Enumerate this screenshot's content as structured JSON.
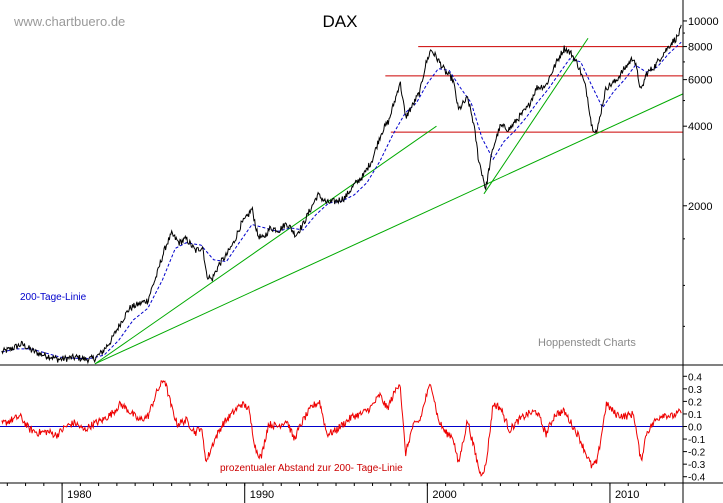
{
  "chart_data": [
    {
      "type": "line",
      "title": "DAX",
      "watermark": "www.chartbuero.de",
      "source": "Hoppenstedt Charts",
      "yscale": "log",
      "ylim": [
        500,
        11000
      ],
      "xlim": [
        1976.6,
        2014.0
      ],
      "yticks": [
        {
          "value": 10000,
          "label": "10000"
        },
        {
          "value": 8000,
          "label": "8000"
        },
        {
          "value": 6000,
          "label": "6000"
        },
        {
          "value": 4000,
          "label": "4000"
        },
        {
          "value": 2000,
          "label": "2000"
        }
      ],
      "xticks": [
        {
          "value": 1980,
          "label": "1980"
        },
        {
          "value": 1990,
          "label": "1990"
        },
        {
          "value": 2000,
          "label": "2000"
        },
        {
          "value": 2010,
          "label": "2010"
        }
      ],
      "series": [
        {
          "role": "price",
          "color": "#000000",
          "points": [
            [
              1976.7,
              560
            ],
            [
              1977.2,
              575
            ],
            [
              1977.8,
              600
            ],
            [
              1978.3,
              570
            ],
            [
              1978.8,
              550
            ],
            [
              1979.3,
              540
            ],
            [
              1979.8,
              525
            ],
            [
              1980.3,
              530
            ],
            [
              1980.8,
              535
            ],
            [
              1981.3,
              525
            ],
            [
              1981.8,
              530
            ],
            [
              1982.2,
              560
            ],
            [
              1982.7,
              620
            ],
            [
              1983.2,
              720
            ],
            [
              1983.7,
              820
            ],
            [
              1984.2,
              850
            ],
            [
              1984.7,
              880
            ],
            [
              1985.2,
              1100
            ],
            [
              1985.7,
              1420
            ],
            [
              1986.0,
              1560
            ],
            [
              1986.4,
              1450
            ],
            [
              1986.8,
              1500
            ],
            [
              1987.3,
              1350
            ],
            [
              1987.7,
              1400
            ],
            [
              1987.9,
              1100
            ],
            [
              1988.2,
              1050
            ],
            [
              1988.6,
              1200
            ],
            [
              1989.0,
              1300
            ],
            [
              1989.4,
              1450
            ],
            [
              1989.8,
              1700
            ],
            [
              1990.1,
              1800
            ],
            [
              1990.4,
              1950
            ],
            [
              1990.7,
              1550
            ],
            [
              1991.0,
              1500
            ],
            [
              1991.4,
              1650
            ],
            [
              1991.9,
              1620
            ],
            [
              1992.3,
              1720
            ],
            [
              1992.8,
              1550
            ],
            [
              1993.2,
              1700
            ],
            [
              1993.7,
              2000
            ],
            [
              1994.0,
              2200
            ],
            [
              1994.5,
              2050
            ],
            [
              1995.0,
              2080
            ],
            [
              1995.5,
              2150
            ],
            [
              1996.0,
              2400
            ],
            [
              1996.5,
              2600
            ],
            [
              1997.0,
              3000
            ],
            [
              1997.5,
              3800
            ],
            [
              1997.9,
              4200
            ],
            [
              1998.3,
              5200
            ],
            [
              1998.5,
              5900
            ],
            [
              1998.8,
              4300
            ],
            [
              1999.2,
              4800
            ],
            [
              1999.6,
              5400
            ],
            [
              1999.9,
              6800
            ],
            [
              2000.2,
              7800
            ],
            [
              2000.6,
              7100
            ],
            [
              2001.0,
              6400
            ],
            [
              2001.4,
              6000
            ],
            [
              2001.7,
              4600
            ],
            [
              2002.2,
              5100
            ],
            [
              2002.5,
              4200
            ],
            [
              2002.8,
              3000
            ],
            [
              2003.2,
              2300
            ],
            [
              2003.6,
              3300
            ],
            [
              2004.0,
              4000
            ],
            [
              2004.5,
              3900
            ],
            [
              2005.0,
              4300
            ],
            [
              2005.5,
              4700
            ],
            [
              2006.0,
              5600
            ],
            [
              2006.5,
              5700
            ],
            [
              2007.0,
              6800
            ],
            [
              2007.5,
              7900
            ],
            [
              2007.9,
              7500
            ],
            [
              2008.3,
              6700
            ],
            [
              2008.7,
              5500
            ],
            [
              2009.0,
              4000
            ],
            [
              2009.3,
              3800
            ],
            [
              2009.8,
              5600
            ],
            [
              2010.3,
              5900
            ],
            [
              2010.8,
              6600
            ],
            [
              2011.3,
              7300
            ],
            [
              2011.7,
              5400
            ],
            [
              2012.0,
              6300
            ],
            [
              2012.5,
              6800
            ],
            [
              2012.9,
              7500
            ],
            [
              2013.4,
              8300
            ],
            [
              2013.7,
              8700
            ],
            [
              2013.9,
              9400
            ]
          ]
        },
        {
          "role": "200-day moving average",
          "label": "200-Tage-Linie",
          "color": "#0000cc",
          "points": [
            [
              1976.7,
              560
            ],
            [
              1977.5,
              575
            ],
            [
              1978.3,
              575
            ],
            [
              1979.1,
              555
            ],
            [
              1979.9,
              535
            ],
            [
              1980.7,
              530
            ],
            [
              1981.5,
              528
            ],
            [
              1982.3,
              545
            ],
            [
              1983.1,
              620
            ],
            [
              1983.9,
              740
            ],
            [
              1984.7,
              820
            ],
            [
              1985.5,
              1050
            ],
            [
              1986.2,
              1380
            ],
            [
              1986.8,
              1450
            ],
            [
              1987.6,
              1420
            ],
            [
              1988.3,
              1250
            ],
            [
              1989.0,
              1230
            ],
            [
              1989.7,
              1450
            ],
            [
              1990.4,
              1700
            ],
            [
              1991.1,
              1650
            ],
            [
              1991.8,
              1600
            ],
            [
              1992.5,
              1650
            ],
            [
              1993.2,
              1620
            ],
            [
              1993.9,
              1850
            ],
            [
              1994.6,
              2050
            ],
            [
              1995.3,
              2080
            ],
            [
              1996.0,
              2200
            ],
            [
              1996.7,
              2450
            ],
            [
              1997.4,
              2950
            ],
            [
              1998.1,
              3700
            ],
            [
              1998.8,
              4500
            ],
            [
              1999.4,
              4900
            ],
            [
              2000.0,
              5800
            ],
            [
              2000.6,
              6600
            ],
            [
              2001.2,
              6500
            ],
            [
              2001.8,
              5600
            ],
            [
              2002.4,
              4900
            ],
            [
              2003.0,
              3600
            ],
            [
              2003.6,
              3000
            ],
            [
              2004.2,
              3500
            ],
            [
              2004.8,
              3850
            ],
            [
              2005.4,
              4300
            ],
            [
              2006.0,
              4900
            ],
            [
              2006.6,
              5500
            ],
            [
              2007.2,
              6300
            ],
            [
              2007.8,
              7200
            ],
            [
              2008.4,
              7000
            ],
            [
              2009.0,
              5700
            ],
            [
              2009.6,
              4700
            ],
            [
              2010.2,
              5400
            ],
            [
              2010.8,
              6000
            ],
            [
              2011.4,
              6800
            ],
            [
              2012.0,
              6400
            ],
            [
              2012.6,
              6700
            ],
            [
              2013.2,
              7500
            ],
            [
              2013.9,
              8300
            ]
          ]
        }
      ],
      "horizontal_lines": [
        {
          "value": 8000,
          "from": 1999.5,
          "to": 2014.0,
          "color": "#cc0000"
        },
        {
          "value": 6200,
          "from": 1997.7,
          "to": 2014.0,
          "color": "#cc0000"
        },
        {
          "value": 3800,
          "from": 1998.0,
          "to": 2014.0,
          "color": "#cc0000"
        }
      ],
      "trendlines": [
        {
          "from": [
            1981.8,
            505
          ],
          "to": [
            2000.5,
            4000
          ],
          "color": "#00aa00"
        },
        {
          "from": [
            1981.8,
            505
          ],
          "to": [
            2014.0,
            5300
          ],
          "color": "#00aa00"
        },
        {
          "from": [
            2003.1,
            2220
          ],
          "to": [
            2008.8,
            8600
          ],
          "color": "#00aa00"
        }
      ]
    },
    {
      "type": "line",
      "title": "prozentualer Abstand zur 200- Tage-Linie",
      "ylim": [
        -0.45,
        0.45
      ],
      "xlim": [
        1976.6,
        2014.0
      ],
      "yticks": [
        {
          "value": 0.4,
          "label": "0.4"
        },
        {
          "value": 0.3,
          "label": "0.3"
        },
        {
          "value": 0.2,
          "label": "0.2"
        },
        {
          "value": 0.1,
          "label": "0.1"
        },
        {
          "value": 0.0,
          "label": "0.0"
        },
        {
          "value": -0.1,
          "label": "-0.1"
        },
        {
          "value": -0.2,
          "label": "-0.2"
        },
        {
          "value": -0.3,
          "label": "-0.3"
        },
        {
          "value": -0.4,
          "label": "-0.4"
        }
      ],
      "zero_line_color": "#0000cc",
      "series": [
        {
          "role": "oscillator",
          "color": "#ee0000",
          "points": [
            [
              1976.7,
              0.02
            ],
            [
              1977.2,
              0.05
            ],
            [
              1977.7,
              0.08
            ],
            [
              1978.2,
              -0.02
            ],
            [
              1978.7,
              -0.05
            ],
            [
              1979.2,
              -0.04
            ],
            [
              1979.7,
              -0.07
            ],
            [
              1980.2,
              0.0
            ],
            [
              1980.7,
              0.03
            ],
            [
              1981.2,
              -0.03
            ],
            [
              1981.7,
              0.02
            ],
            [
              1982.2,
              0.05
            ],
            [
              1982.7,
              0.1
            ],
            [
              1983.2,
              0.18
            ],
            [
              1983.7,
              0.12
            ],
            [
              1984.2,
              0.05
            ],
            [
              1984.7,
              0.08
            ],
            [
              1985.2,
              0.28
            ],
            [
              1985.6,
              0.38
            ],
            [
              1986.0,
              0.15
            ],
            [
              1986.3,
              0.02
            ],
            [
              1986.8,
              0.05
            ],
            [
              1987.3,
              -0.05
            ],
            [
              1987.6,
              0.0
            ],
            [
              1987.9,
              -0.28
            ],
            [
              1988.3,
              -0.12
            ],
            [
              1988.8,
              0.02
            ],
            [
              1989.3,
              0.1
            ],
            [
              1989.8,
              0.18
            ],
            [
              1990.2,
              0.15
            ],
            [
              1990.6,
              -0.18
            ],
            [
              1990.9,
              -0.25
            ],
            [
              1991.3,
              0.02
            ],
            [
              1991.8,
              0.0
            ],
            [
              1992.3,
              0.05
            ],
            [
              1992.7,
              -0.1
            ],
            [
              1993.2,
              0.05
            ],
            [
              1993.7,
              0.16
            ],
            [
              1994.1,
              0.2
            ],
            [
              1994.5,
              -0.06
            ],
            [
              1994.9,
              -0.04
            ],
            [
              1995.4,
              0.02
            ],
            [
              1995.9,
              0.08
            ],
            [
              1996.4,
              0.1
            ],
            [
              1996.9,
              0.15
            ],
            [
              1997.4,
              0.25
            ],
            [
              1997.8,
              0.14
            ],
            [
              1998.3,
              0.3
            ],
            [
              1998.5,
              0.36
            ],
            [
              1998.8,
              -0.22
            ],
            [
              1999.2,
              0.0
            ],
            [
              1999.6,
              0.05
            ],
            [
              1999.9,
              0.22
            ],
            [
              2000.2,
              0.35
            ],
            [
              2000.6,
              0.05
            ],
            [
              2001.0,
              -0.05
            ],
            [
              2001.4,
              -0.08
            ],
            [
              2001.7,
              -0.3
            ],
            [
              2002.2,
              0.05
            ],
            [
              2002.6,
              -0.2
            ],
            [
              2002.9,
              -0.38
            ],
            [
              2003.2,
              -0.32
            ],
            [
              2003.6,
              0.18
            ],
            [
              2004.0,
              0.15
            ],
            [
              2004.5,
              -0.03
            ],
            [
              2005.0,
              0.05
            ],
            [
              2005.5,
              0.1
            ],
            [
              2006.0,
              0.12
            ],
            [
              2006.5,
              -0.06
            ],
            [
              2007.0,
              0.1
            ],
            [
              2007.5,
              0.12
            ],
            [
              2007.9,
              0.02
            ],
            [
              2008.3,
              -0.08
            ],
            [
              2008.7,
              -0.22
            ],
            [
              2009.0,
              -0.32
            ],
            [
              2009.3,
              -0.28
            ],
            [
              2009.8,
              0.18
            ],
            [
              2010.3,
              0.1
            ],
            [
              2010.8,
              0.08
            ],
            [
              2011.3,
              0.1
            ],
            [
              2011.7,
              -0.28
            ],
            [
              2012.0,
              -0.05
            ],
            [
              2012.5,
              0.05
            ],
            [
              2012.9,
              0.1
            ],
            [
              2013.4,
              0.08
            ],
            [
              2013.9,
              0.12
            ]
          ]
        }
      ]
    }
  ]
}
